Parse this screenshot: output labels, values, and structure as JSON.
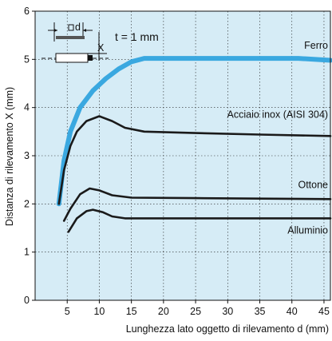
{
  "chart_data": {
    "type": "line",
    "xlabel": "Lunghezza lato oggetto di rilevamento d (mm)",
    "ylabel": "Distanza di rilevamento X (mm)",
    "xlim": [
      0,
      46
    ],
    "ylim": [
      0,
      6
    ],
    "x_ticks": [
      5,
      10,
      15,
      20,
      25,
      30,
      35,
      40,
      45
    ],
    "y_ticks": [
      0,
      1,
      2,
      3,
      4,
      5,
      6
    ],
    "grid": true,
    "inset_text": "t = 1 mm",
    "colors": {
      "blue": "#3aa8e0",
      "black": "#1a1a1a",
      "bg": "#d6ecf6"
    },
    "series": [
      {
        "name": "Ferro",
        "color": "#3aa8e0",
        "points": [
          [
            3.7,
            2.0
          ],
          [
            4.5,
            2.9
          ],
          [
            5.5,
            3.5
          ],
          [
            7,
            4.0
          ],
          [
            9,
            4.35
          ],
          [
            11,
            4.6
          ],
          [
            13,
            4.8
          ],
          [
            15,
            4.95
          ],
          [
            17,
            5.02
          ],
          [
            25,
            5.02
          ],
          [
            35,
            5.02
          ],
          [
            41,
            5.02
          ],
          [
            46,
            4.98
          ]
        ]
      },
      {
        "name": "Acciaio inox (AISI 304)",
        "color": "#1a1a1a",
        "points": [
          [
            3.7,
            2.0
          ],
          [
            4.5,
            2.7
          ],
          [
            5.5,
            3.2
          ],
          [
            6.5,
            3.5
          ],
          [
            8,
            3.72
          ],
          [
            10,
            3.82
          ],
          [
            12,
            3.72
          ],
          [
            14,
            3.58
          ],
          [
            17,
            3.5
          ],
          [
            25,
            3.47
          ],
          [
            35,
            3.44
          ],
          [
            46,
            3.41
          ]
        ]
      },
      {
        "name": "Ottone",
        "color": "#1a1a1a",
        "points": [
          [
            4.5,
            1.65
          ],
          [
            5.5,
            1.9
          ],
          [
            7,
            2.2
          ],
          [
            8.5,
            2.32
          ],
          [
            10,
            2.28
          ],
          [
            12,
            2.18
          ],
          [
            15,
            2.13
          ],
          [
            25,
            2.12
          ],
          [
            35,
            2.11
          ],
          [
            46,
            2.1
          ]
        ]
      },
      {
        "name": "Alluminio",
        "color": "#1a1a1a",
        "points": [
          [
            5.2,
            1.42
          ],
          [
            6.5,
            1.7
          ],
          [
            8,
            1.85
          ],
          [
            9,
            1.88
          ],
          [
            10.5,
            1.83
          ],
          [
            12,
            1.74
          ],
          [
            14,
            1.7
          ],
          [
            25,
            1.7
          ],
          [
            35,
            1.7
          ],
          [
            46,
            1.7
          ]
        ]
      }
    ]
  }
}
